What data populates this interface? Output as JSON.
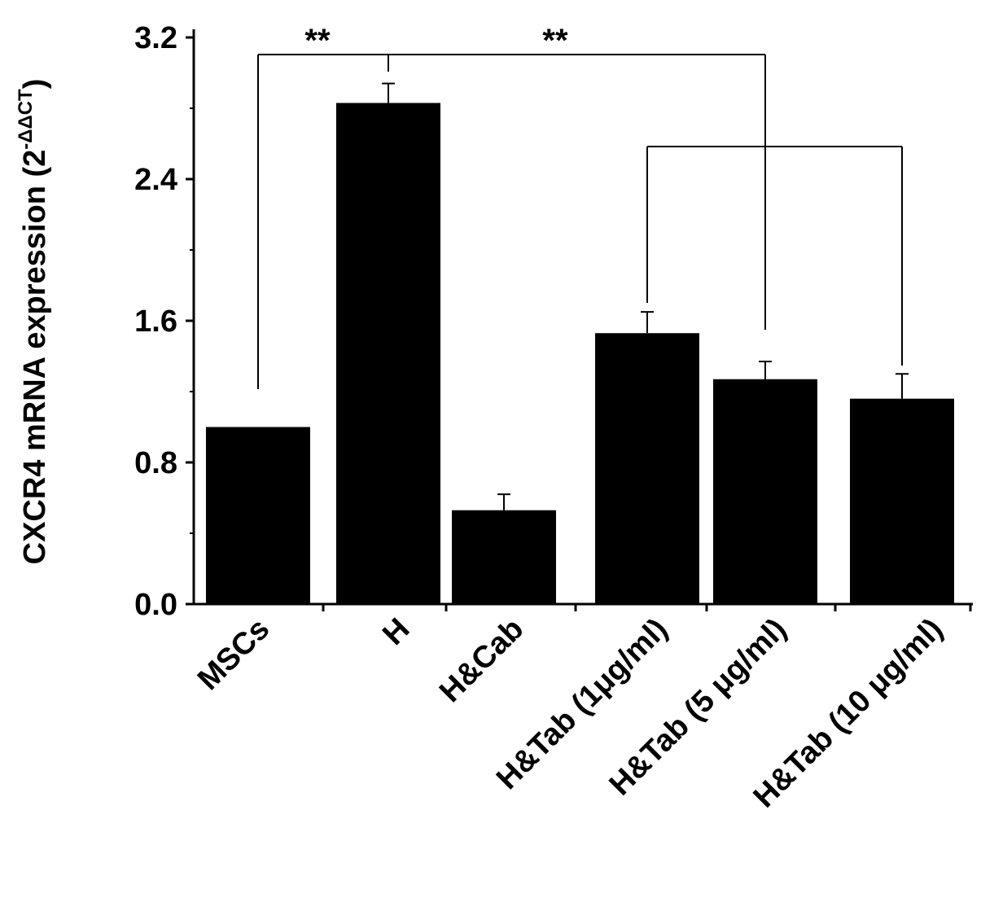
{
  "chart_data": {
    "type": "bar",
    "ylabel": "CXCR4 mRNA expression (2",
    "ylabel_sup": "-ΔΔCT",
    "ylabel_close": ")",
    "categories": [
      "MSCs",
      "H",
      "H&Cab",
      "H&Tab (1μg/ml)",
      "H&Tab (5 μg/ml)",
      "H&Tab (10 μg/ml)"
    ],
    "values": [
      1.0,
      2.83,
      0.53,
      1.53,
      1.27,
      1.16
    ],
    "errors": [
      0.0,
      0.11,
      0.09,
      0.12,
      0.1,
      0.14
    ],
    "bar_color": "#000000",
    "ylim": [
      0,
      3.2
    ],
    "yticks": [
      0.0,
      0.8,
      1.6,
      2.4,
      3.2
    ],
    "ytick_labels": [
      "0.0",
      "0.8",
      "1.6",
      "2.4",
      "3.2"
    ],
    "grid": false,
    "annotations": [
      {
        "text": "**",
        "from": "MSCs",
        "to": "H"
      },
      {
        "text": "**",
        "from": "H",
        "to": "H&Tab (5 μg/ml)"
      },
      {
        "text": "",
        "from": "H&Tab (1μg/ml)",
        "to": "H&Tab (10 μg/ml)"
      }
    ]
  }
}
